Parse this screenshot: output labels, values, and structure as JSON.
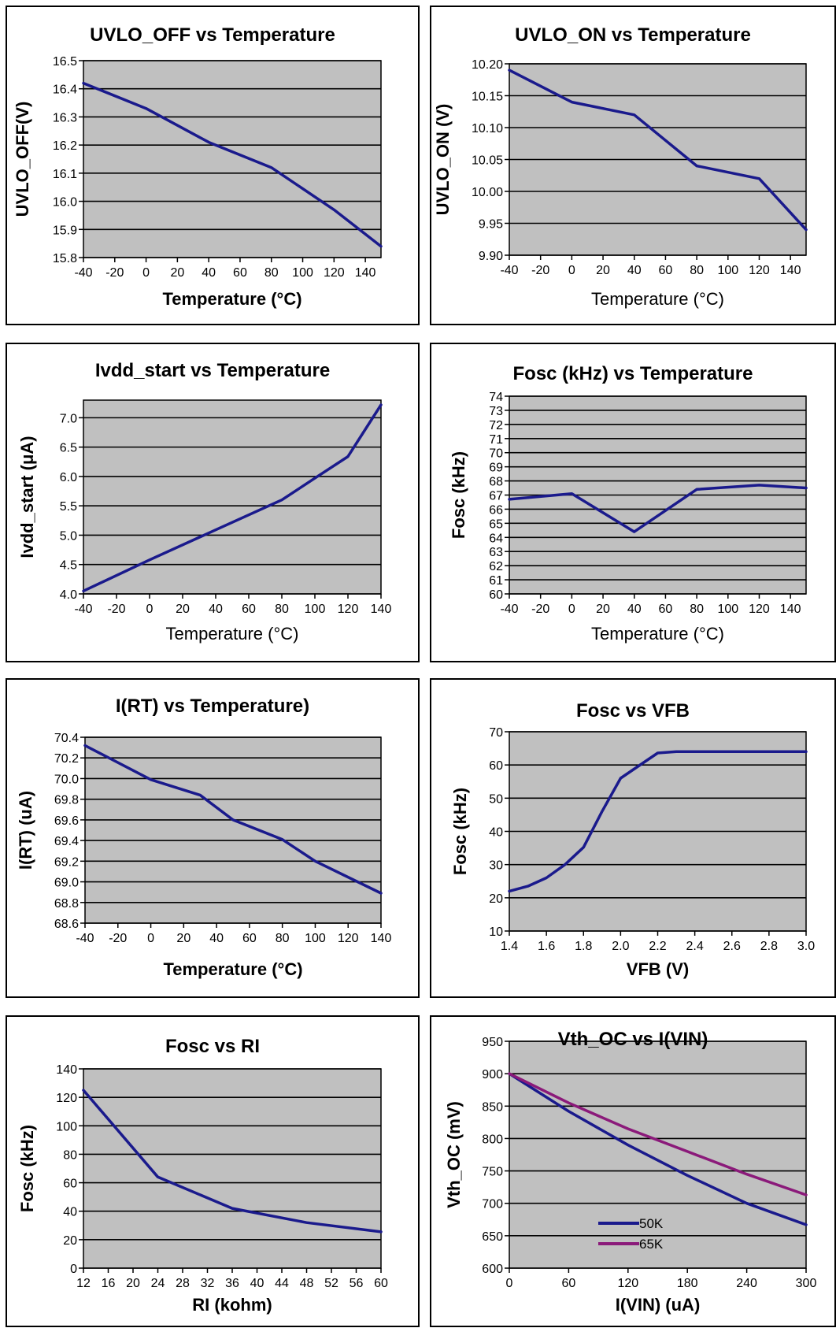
{
  "colors": {
    "series_blue": "#1a1a8c",
    "series_purple": "#8b1a7a",
    "plot_bg": "#c0c0c0"
  },
  "chart_data": [
    {
      "type": "line",
      "title": "UVLO_OFF vs Temperature",
      "xlabel": "Temperature (°C)",
      "xlabel_bold": true,
      "ylabel": "UVLO_OFF(V)",
      "xlim": [
        -40,
        150
      ],
      "ylim": [
        15.8,
        16.5
      ],
      "xticks": [
        -40,
        -20,
        0,
        20,
        40,
        60,
        80,
        100,
        120,
        140
      ],
      "yticks": [
        "15.8",
        "15.9",
        "16.0",
        "16.1",
        "16.2",
        "16.3",
        "16.4",
        "16.5"
      ],
      "grid": true,
      "series": [
        {
          "color": "blue",
          "x": [
            -40,
            0,
            40,
            80,
            120,
            150
          ],
          "y": [
            16.42,
            16.33,
            16.21,
            16.12,
            15.97,
            15.84
          ]
        }
      ]
    },
    {
      "type": "line",
      "title": "UVLO_ON vs Temperature",
      "xlabel": "Temperature (°C)",
      "xlabel_bold": false,
      "ylabel": "UVLO_ON (V)",
      "xlim": [
        -40,
        150
      ],
      "ylim": [
        9.9,
        10.2
      ],
      "xticks": [
        -40,
        -20,
        0,
        20,
        40,
        60,
        80,
        100,
        120,
        140
      ],
      "yticks": [
        "9.90",
        "9.95",
        "10.00",
        "10.05",
        "10.10",
        "10.15",
        "10.20"
      ],
      "grid": true,
      "series": [
        {
          "color": "blue",
          "x": [
            -40,
            0,
            40,
            80,
            120,
            150
          ],
          "y": [
            10.19,
            10.14,
            10.12,
            10.04,
            10.02,
            9.94
          ]
        }
      ]
    },
    {
      "type": "line",
      "title": "Ivdd_start vs Temperature",
      "xlabel": "Temperature (°C)",
      "xlabel_bold": false,
      "ylabel": "Ivdd_start (μA)",
      "xlim": [
        -40,
        140
      ],
      "ylim": [
        4.0,
        7.3
      ],
      "xticks": [
        -40,
        -20,
        0,
        20,
        40,
        60,
        80,
        100,
        120,
        140
      ],
      "yticks": [
        "4.0",
        "4.5",
        "5.0",
        "5.5",
        "6.0",
        "6.5",
        "7.0"
      ],
      "grid": true,
      "series": [
        {
          "color": "blue",
          "x": [
            -40,
            0,
            40,
            80,
            100,
            120,
            140
          ],
          "y": [
            4.05,
            4.58,
            5.09,
            5.6,
            5.97,
            6.34,
            7.22
          ]
        }
      ]
    },
    {
      "type": "line",
      "title": "Fosc (kHz)  vs Temperature",
      "xlabel": "Temperature (°C)",
      "xlabel_bold": false,
      "ylabel": "Fosc (kHz)",
      "xlim": [
        -40,
        150
      ],
      "ylim": [
        60,
        74
      ],
      "xticks": [
        -40,
        -20,
        0,
        20,
        40,
        60,
        80,
        100,
        120,
        140
      ],
      "yticks": [
        "60",
        "61",
        "62",
        "63",
        "64",
        "65",
        "66",
        "67",
        "68",
        "69",
        "70",
        "71",
        "72",
        "73",
        "74"
      ],
      "grid": true,
      "series": [
        {
          "color": "blue",
          "x": [
            -40,
            0,
            40,
            80,
            120,
            150
          ],
          "y": [
            66.7,
            67.1,
            64.4,
            67.4,
            67.7,
            67.5
          ]
        }
      ]
    },
    {
      "type": "line",
      "title": "I(RT) vs Temperature)",
      "xlabel": "Temperature (°C)",
      "xlabel_bold": true,
      "ylabel": "I(RT) (uA)",
      "xlim": [
        -40,
        140
      ],
      "ylim": [
        68.6,
        70.4
      ],
      "xticks": [
        -40,
        -20,
        0,
        20,
        40,
        60,
        80,
        100,
        120,
        140
      ],
      "yticks": [
        "68.6",
        "68.8",
        "69.0",
        "69.2",
        "69.4",
        "69.6",
        "69.8",
        "70.0",
        "70.2",
        "70.4"
      ],
      "grid": true,
      "series": [
        {
          "color": "blue",
          "x": [
            -40,
            0,
            30,
            50,
            80,
            100,
            140
          ],
          "y": [
            70.32,
            69.99,
            69.84,
            69.6,
            69.41,
            69.2,
            68.89
          ]
        }
      ]
    },
    {
      "type": "line",
      "title": "Fosc vs  VFB",
      "xlabel": "VFB (V)",
      "xlabel_bold": true,
      "ylabel": "Fosc (kHz)",
      "xlim": [
        1.4,
        3.0
      ],
      "ylim": [
        10,
        70
      ],
      "xticks": [
        "1.4",
        "1.6",
        "1.8",
        "2.0",
        "2.2",
        "2.4",
        "2.6",
        "2.8",
        "3.0"
      ],
      "yticks": [
        "10",
        "20",
        "30",
        "40",
        "50",
        "60",
        "70"
      ],
      "grid": true,
      "series": [
        {
          "color": "blue",
          "x": [
            1.4,
            1.5,
            1.6,
            1.7,
            1.8,
            1.9,
            2.0,
            2.1,
            2.2,
            2.3,
            2.4,
            2.6,
            2.8,
            3.0
          ],
          "y": [
            22,
            23.5,
            26,
            30,
            35.2,
            46,
            56,
            59.8,
            63.6,
            64,
            64,
            64,
            64,
            64
          ]
        }
      ]
    },
    {
      "type": "line",
      "title": "Fosc vs  RI",
      "xlabel": "RI (kohm)",
      "xlabel_bold": true,
      "ylabel": "Fosc (kHz)",
      "xlim": [
        12,
        60
      ],
      "ylim": [
        0,
        140
      ],
      "xticks": [
        12,
        16,
        20,
        24,
        28,
        32,
        36,
        40,
        44,
        48,
        52,
        56,
        60
      ],
      "yticks": [
        "0",
        "20",
        "40",
        "60",
        "80",
        "100",
        "120",
        "140"
      ],
      "grid": true,
      "series": [
        {
          "color": "blue",
          "x": [
            12,
            24,
            36,
            48,
            60
          ],
          "y": [
            125,
            64,
            42,
            32,
            25.5
          ]
        }
      ]
    },
    {
      "type": "line",
      "title": "Vth_OC vs I(VIN)",
      "xlabel": "I(VIN) (uA)",
      "xlabel_bold": true,
      "ylabel": "Vth_OC (mV)",
      "xlim": [
        0,
        300
      ],
      "ylim": [
        600,
        950
      ],
      "xticks": [
        0,
        60,
        120,
        180,
        240,
        300
      ],
      "yticks": [
        "600",
        "650",
        "700",
        "750",
        "800",
        "850",
        "900",
        "950"
      ],
      "grid": true,
      "legend": "inside-lower-center",
      "series": [
        {
          "name": "50K",
          "color": "blue",
          "x": [
            0,
            60,
            120,
            180,
            240,
            300
          ],
          "y": [
            900,
            842,
            790,
            743,
            700,
            667
          ]
        },
        {
          "name": "65K",
          "color": "purple",
          "x": [
            0,
            60,
            120,
            180,
            240,
            300
          ],
          "y": [
            900,
            855,
            815,
            780,
            745,
            713
          ]
        }
      ]
    }
  ]
}
